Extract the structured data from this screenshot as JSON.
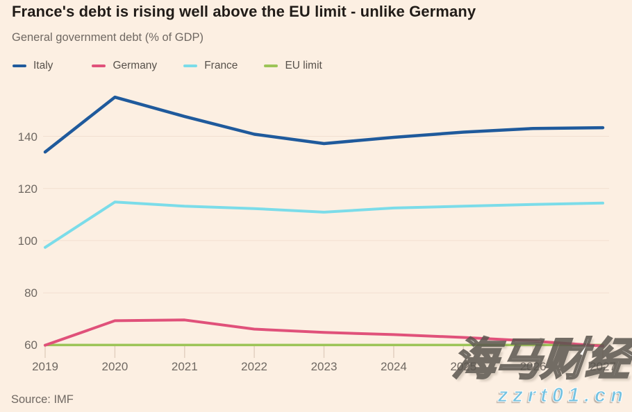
{
  "header": {
    "title": "France's debt is rising well above the EU limit - unlike Germany",
    "subtitle": "General government debt (% of GDP)"
  },
  "legend": {
    "items": [
      {
        "label": "Italy",
        "color": "#1f5a9c"
      },
      {
        "label": "Germany",
        "color": "#e0517a"
      },
      {
        "label": "France",
        "color": "#7bdce9"
      },
      {
        "label": "EU limit",
        "color": "#9cc457"
      }
    ]
  },
  "chart_data": {
    "type": "line",
    "title": "France's debt is rising well above the EU limit - unlike Germany",
    "ylabel": "General government debt (% of GDP)",
    "xlabel": "",
    "x": [
      2019,
      2020,
      2021,
      2022,
      2023,
      2024,
      2025,
      2026,
      2027
    ],
    "series": [
      {
        "name": "Italy",
        "color": "#1f5a9c",
        "width": 4.5,
        "values": [
          134.0,
          155.0,
          147.6,
          140.8,
          137.2,
          139.6,
          141.6,
          143.0,
          143.3
        ]
      },
      {
        "name": "Germany",
        "color": "#e0517a",
        "width": 4,
        "values": [
          59.9,
          69.3,
          69.6,
          66.1,
          64.8,
          64.0,
          62.9,
          61.5,
          59.6
        ]
      },
      {
        "name": "France",
        "color": "#7bdce9",
        "width": 4,
        "values": [
          97.4,
          114.8,
          113.2,
          112.3,
          110.9,
          112.5,
          113.2,
          113.9,
          114.4
        ]
      },
      {
        "name": "EU limit",
        "color": "#9cc457",
        "width": 3.5,
        "values": [
          60,
          60,
          60,
          60,
          60,
          60,
          60,
          60,
          60
        ]
      }
    ],
    "yticks": [
      60,
      80,
      100,
      120,
      140
    ],
    "ylim": [
      57,
      158
    ],
    "grid": true,
    "legend_position": "top",
    "z_order": [
      "EU limit",
      "Germany",
      "France",
      "Italy"
    ]
  },
  "footer": {
    "source": "Source: IMF"
  },
  "watermark": {
    "text_cn": "海马财经",
    "text_url": "zzrt01.cn",
    "url_color": "#74c2e1"
  }
}
